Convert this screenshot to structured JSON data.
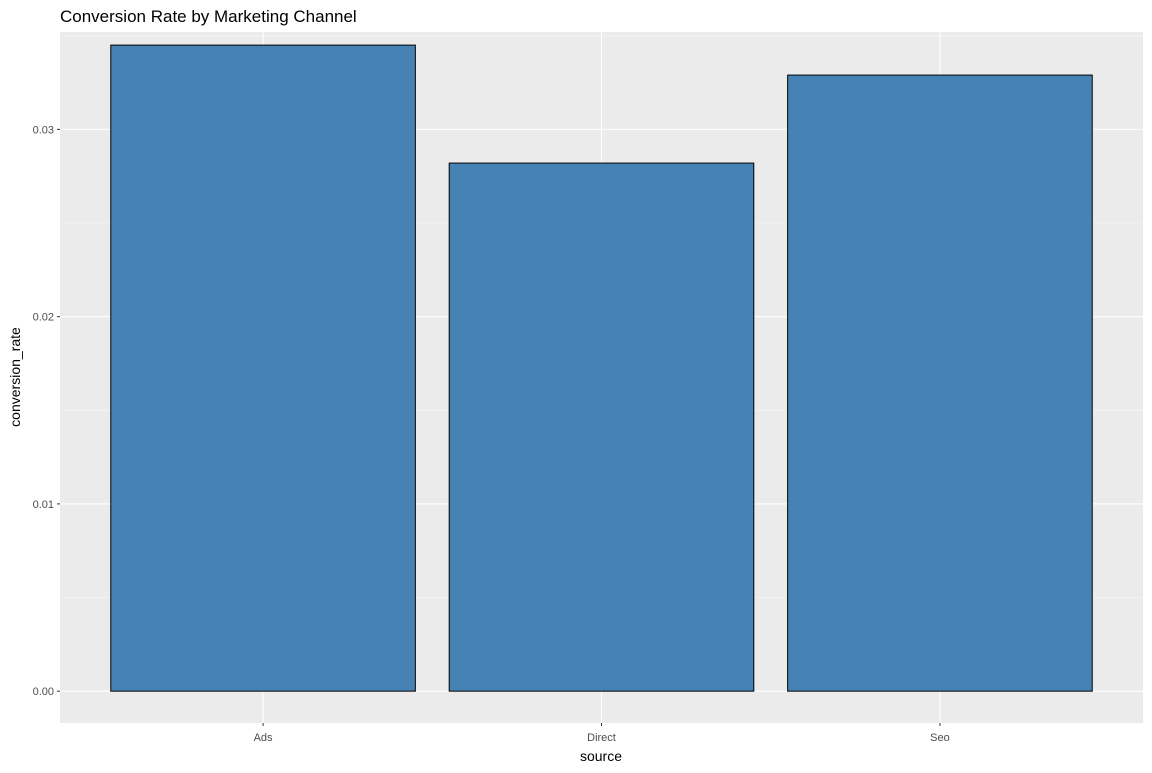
{
  "chart_data": {
    "type": "bar",
    "title": "Conversion Rate by Marketing Channel",
    "xlabel": "source",
    "ylabel": "conversion_rate",
    "categories": [
      "Ads",
      "Direct",
      "Seo"
    ],
    "values": [
      0.0345,
      0.0282,
      0.0329
    ],
    "ylim": [
      -0.0017,
      0.0352
    ],
    "yticks": [
      0.0,
      0.01,
      0.02,
      0.03
    ],
    "ytick_labels": [
      "0.00",
      "0.01",
      "0.02",
      "0.03"
    ],
    "grid": true,
    "legend": "none",
    "colors": {
      "panel_background": "#ebebeb",
      "grid_major": "#ffffff",
      "grid_minor": "#f5f5f5",
      "bar_fill": "#4682b4",
      "bar_outline": "#000000",
      "tick_text": "#4d4d4d",
      "text": "#000000"
    }
  }
}
